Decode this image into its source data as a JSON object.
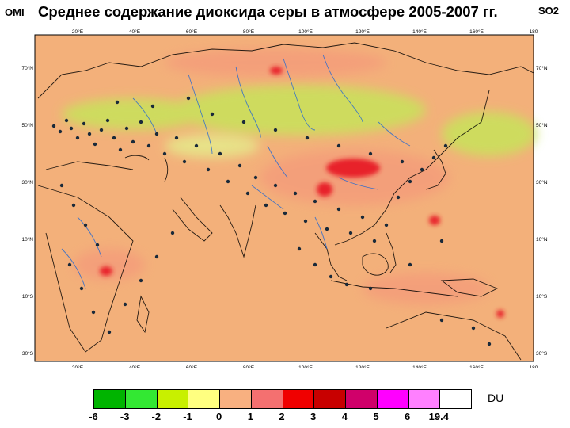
{
  "header": {
    "instrument": "OMI",
    "title": "Среднее содержание диоксида серы в атмосфере 2005-2007 гг.",
    "species": "SO2"
  },
  "map": {
    "lon_ticks": [
      "20°E",
      "40°E",
      "60°E",
      "80°E",
      "100°E",
      "120°E",
      "140°E",
      "160°E",
      "180"
    ],
    "lat_ticks_left": [
      "70°N",
      "50°N",
      "30°N",
      "10°N",
      "10°S",
      "30°S"
    ],
    "lat_ticks_right": [
      "70°N",
      "50°N",
      "30°N",
      "10°N",
      "10°S",
      "30°S"
    ],
    "background_color": "#f3b07a",
    "low_color": "#c8e35a",
    "high_color": "#e8242a"
  },
  "colorbar": {
    "unit": "DU",
    "labels": [
      "-6",
      "-3",
      "-2",
      "-1",
      "0",
      "1",
      "2",
      "3",
      "4",
      "5",
      "6",
      "19.4"
    ],
    "colors": [
      "#00b400",
      "#33e833",
      "#c8f000",
      "#ffff80",
      "#f8b080",
      "#f47070",
      "#f00000",
      "#c80000",
      "#d0006a",
      "#ff00ff",
      "#ff80ff",
      "#ffffff"
    ]
  }
}
